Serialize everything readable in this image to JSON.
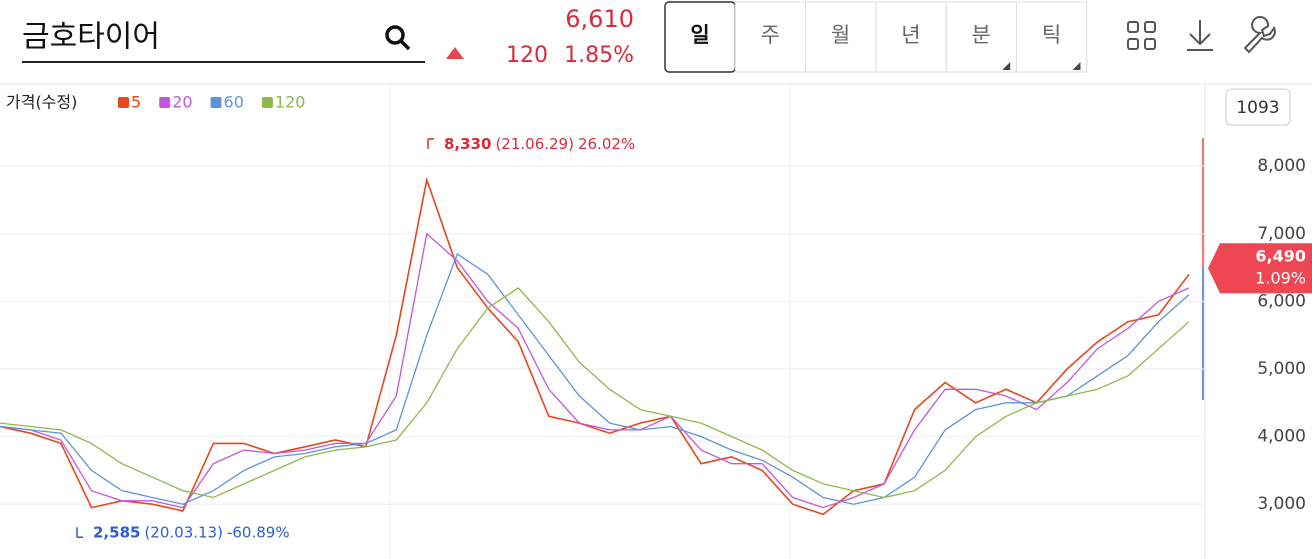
{
  "header": {
    "title": "금호타이어",
    "price": "6,610",
    "change": "120",
    "change_pct": "1.85%",
    "tabs": [
      "일",
      "주",
      "월",
      "년",
      "분",
      "틱"
    ],
    "count": "1093"
  },
  "chart_data": {
    "type": "line",
    "legend_title": "가격(수정)",
    "series": [
      {
        "name": "5",
        "color": "#e5481f",
        "values": [
          4150,
          4050,
          3900,
          2950,
          3050,
          3000,
          2900,
          3900,
          3900,
          3750,
          3850,
          3950,
          3850,
          5500,
          7800,
          6500,
          5900,
          5400,
          4300,
          4200,
          4050,
          4200,
          4300,
          3600,
          3700,
          3500,
          3000,
          2850,
          3200,
          3300,
          4400,
          4800,
          4500,
          4700,
          4500,
          5000,
          5400,
          5700,
          5800,
          6400
        ]
      },
      {
        "name": "20",
        "color": "#c158dc",
        "values": [
          4150,
          4100,
          3950,
          3200,
          3050,
          3050,
          2950,
          3600,
          3800,
          3750,
          3800,
          3900,
          3900,
          4600,
          7000,
          6600,
          6000,
          5600,
          4700,
          4200,
          4100,
          4100,
          4300,
          3800,
          3600,
          3600,
          3100,
          2950,
          3100,
          3300,
          4100,
          4700,
          4700,
          4600,
          4400,
          4800,
          5300,
          5600,
          6000,
          6200
        ]
      },
      {
        "name": "60",
        "color": "#5b95d8",
        "values": [
          4150,
          4100,
          4050,
          3500,
          3200,
          3100,
          3000,
          3200,
          3500,
          3700,
          3750,
          3850,
          3900,
          4100,
          5500,
          6700,
          6400,
          5800,
          5200,
          4600,
          4200,
          4100,
          4150,
          4000,
          3800,
          3650,
          3400,
          3100,
          3000,
          3100,
          3400,
          4100,
          4400,
          4500,
          4500,
          4600,
          4900,
          5200,
          5700,
          6100
        ]
      },
      {
        "name": "120",
        "color": "#8fb84d",
        "values": [
          4200,
          4150,
          4100,
          3900,
          3600,
          3400,
          3200,
          3100,
          3300,
          3500,
          3700,
          3800,
          3850,
          3950,
          4500,
          5300,
          5900,
          6200,
          5700,
          5100,
          4700,
          4400,
          4300,
          4200,
          4000,
          3800,
          3500,
          3300,
          3200,
          3100,
          3200,
          3500,
          4000,
          4300,
          4500,
          4600,
          4700,
          4900,
          5300,
          5700
        ]
      }
    ],
    "ylim": [
      2190,
      9200
    ],
    "yticks": [
      {
        "value": 3000,
        "label": "3,000"
      },
      {
        "value": 4000,
        "label": "4,000"
      },
      {
        "value": 5000,
        "label": "5,000"
      },
      {
        "value": 6000,
        "label": "6,000"
      },
      {
        "value": 7000,
        "label": "7,000"
      },
      {
        "value": 8000,
        "label": "8,000"
      }
    ],
    "grid": true,
    "high": {
      "value": 8330,
      "label": "8,330",
      "date": "(21.06.29)",
      "change": "26.02%",
      "color": "#d62c3c"
    },
    "low": {
      "value": 2585,
      "label": "2,585",
      "date": "(20.03.13)",
      "change": "-60.89%",
      "color": "#2b5fcf"
    },
    "last": {
      "value": 6490,
      "label": "6,490",
      "change": "1.09%",
      "color": "#ee4653"
    }
  }
}
